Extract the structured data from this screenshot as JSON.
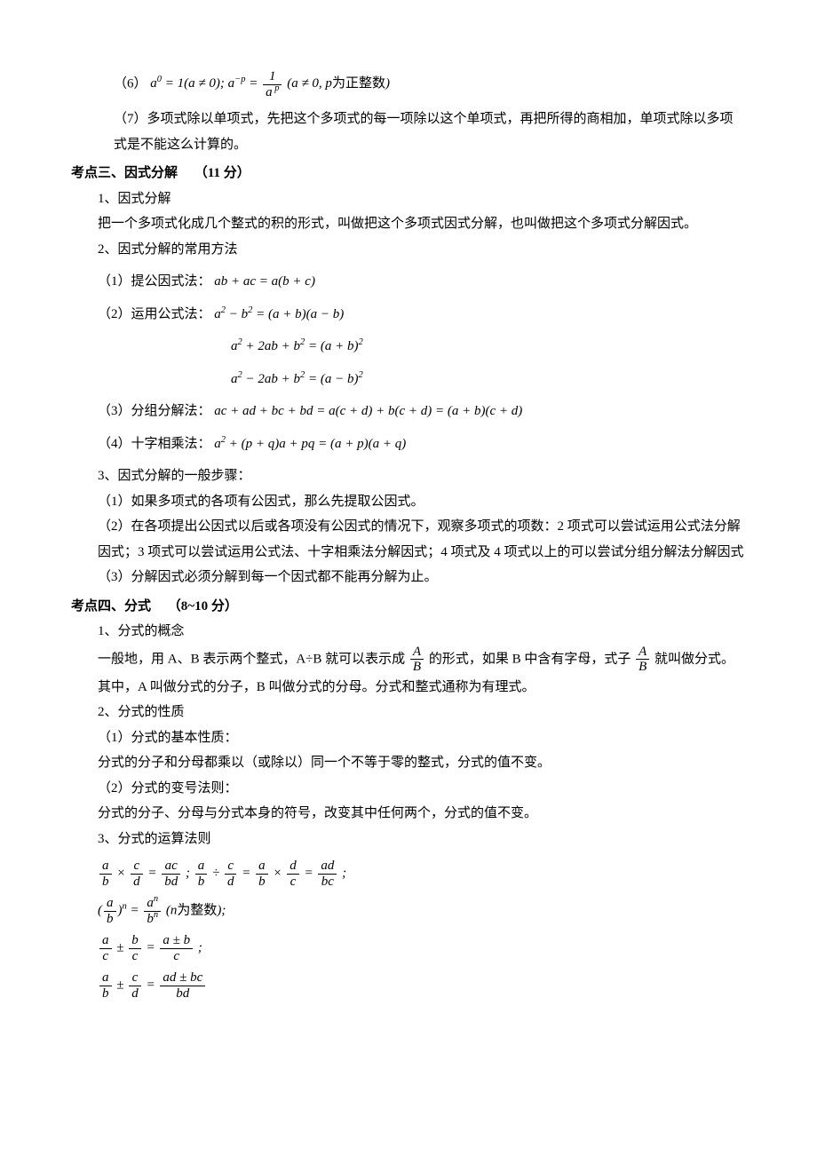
{
  "item6": {
    "label": "（6）",
    "formula_html": "a<sup>0</sup> = 1(a ≠ 0); a<sup>−p</sup> = <span class='frac'><span class='num'>1</span><span class='den'>a<sup>&nbsp;p</sup></span></span> (a ≠ 0, p<span class='upright'>为正整数</span>)"
  },
  "item7": "（7）多项式除以单项式，先把这个多项式的每一项除以这个单项式，再把所得的商相加，单项式除以多项式是不能这么计算的。",
  "kd3": {
    "title": "考点三、因式分解",
    "points": "（11 分）",
    "s1": "1、因式分解",
    "s1_text": "把一个多项式化成几个整式的积的形式，叫做把这个多项式因式分解，也叫做把这个多项式分解因式。",
    "s2": "2、因式分解的常用方法",
    "m1_label": "（1）提公因式法：",
    "m1_formula": "ab + ac = a(b + c)",
    "m2_label": "（2）运用公式法：",
    "m2_f1": "a<sup>2</sup> − b<sup>2</sup> = (a + b)(a − b)",
    "m2_f2": "a<sup>2</sup> + 2ab + b<sup>2</sup> = (a + b)<sup>2</sup>",
    "m2_f3": "a<sup>2</sup> − 2ab + b<sup>2</sup> = (a − b)<sup>2</sup>",
    "m3_label": "（3）分组分解法：",
    "m3_formula": "ac + ad + bc + bd = a(c + d) + b(c + d) = (a + b)(c + d)",
    "m4_label": "（4）十字相乘法：",
    "m4_formula": "a<sup>2</sup> + (p + q)a + pq = (a + p)(a + q)",
    "s3": "3、因式分解的一般步骤：",
    "s3_1": "（1）如果多项式的各项有公因式，那么先提取公因式。",
    "s3_2": "（2）在各项提出公因式以后或各项没有公因式的情况下，观察多项式的项数：2 项式可以尝试运用公式法分解因式；3 项式可以尝试运用公式法、十字相乘法分解因式；4 项式及 4 项式以上的可以尝试分组分解法分解因式",
    "s3_3": "（3）分解因式必须分解到每一个因式都不能再分解为止。"
  },
  "kd4": {
    "title": "考点四、分式",
    "points": "（8~10 分）",
    "s1": "1、分式的概念",
    "s1_text_pre": "一般地，用 A、B 表示两个整式，A÷B 就可以表示成",
    "s1_text_mid": "的形式，如果 B 中含有字母，式子",
    "s1_text_post": "就叫做分式。其中，A 叫做分式的分子，B 叫做分式的分母。分式和整式通称为有理式。",
    "s2": "2、分式的性质",
    "s2_1": "（1）分式的基本性质：",
    "s2_1_text": "分式的分子和分母都乘以（或除以）同一个不等于零的整式，分式的值不变。",
    "s2_2": "（2）分式的变号法则：",
    "s2_2_text": "分式的分子、分母与分式本身的符号，改变其中任何两个，分式的值不变。",
    "s3": "3、分式的运算法则",
    "f1": "<span class='frac'><span class='num'>a</span><span class='den'>b</span></span> × <span class='frac'><span class='num'>c</span><span class='den'>d</span></span> = <span class='frac'><span class='num'>ac</span><span class='den'>bd</span></span> ; <span class='frac'><span class='num'>a</span><span class='den'>b</span></span> ÷ <span class='frac'><span class='num'>c</span><span class='den'>d</span></span> = <span class='frac'><span class='num'>a</span><span class='den'>b</span></span> × <span class='frac'><span class='num'>d</span><span class='den'>c</span></span> = <span class='frac'><span class='num'>ad</span><span class='den'>bc</span></span> ;",
    "f2": "(<span class='frac'><span class='num'>a</span><span class='den'>b</span></span>)<sup>n</sup> = <span class='frac'><span class='num'>a<sup>n</sup></span><span class='den'>b<sup>n</sup></span></span> (n<span class='upright'>为整数</span>);",
    "f3": "<span class='frac'><span class='num'>a</span><span class='den'>c</span></span> ± <span class='frac'><span class='num'>b</span><span class='den'>c</span></span> = <span class='frac'><span class='num'>a ± b</span><span class='den'>c</span></span> ;",
    "f4": "<span class='frac'><span class='num'>a</span><span class='den'>b</span></span> ± <span class='frac'><span class='num'>c</span><span class='den'>d</span></span> = <span class='frac'><span class='num'>ad ± bc</span><span class='den'>bd</span></span>"
  }
}
